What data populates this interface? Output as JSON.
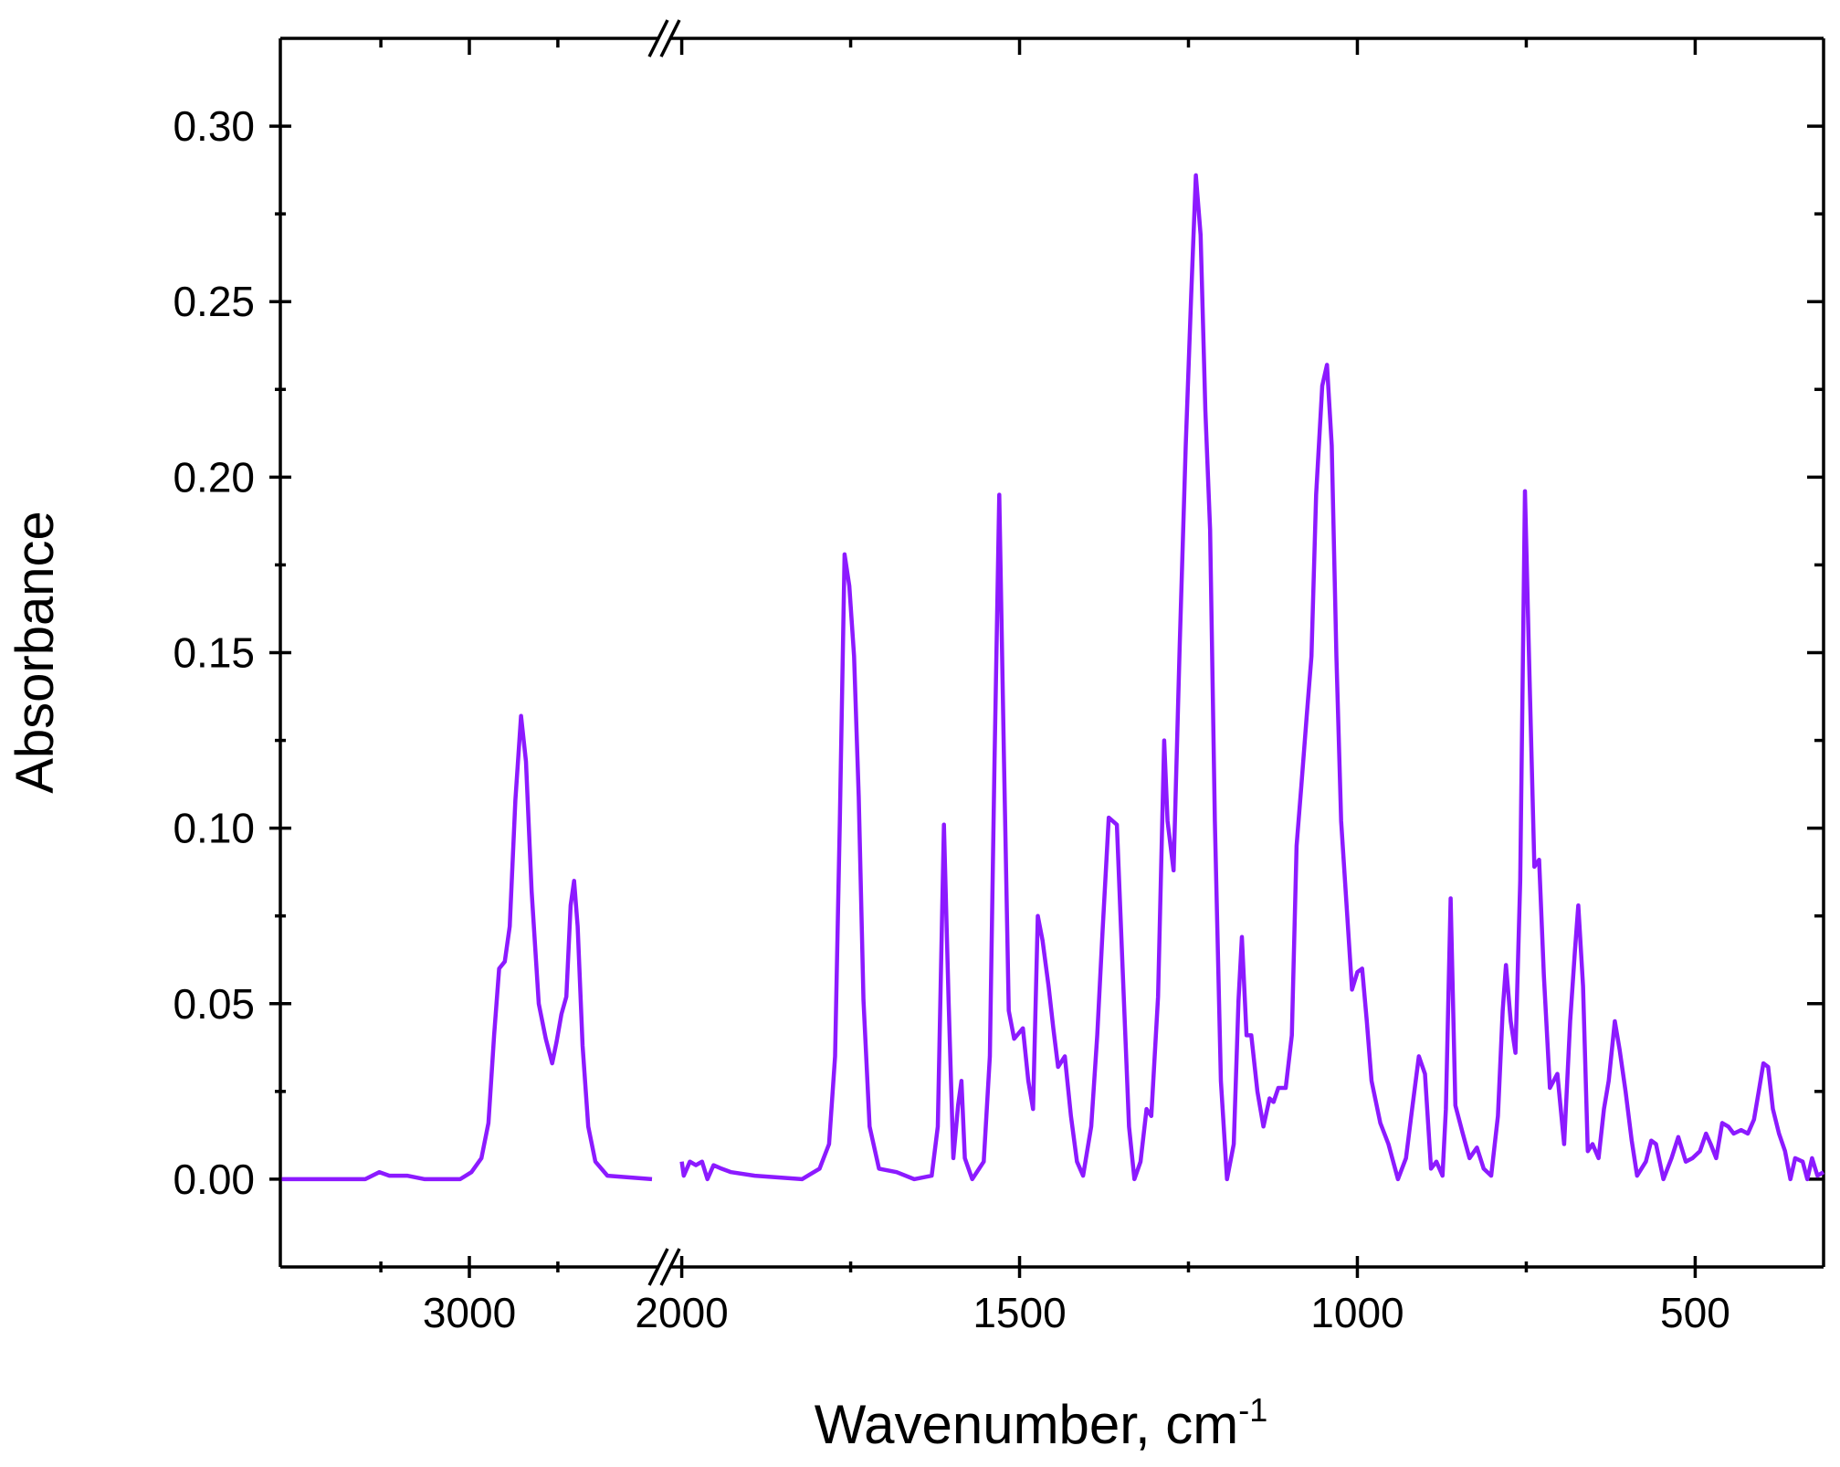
{
  "chart_data": {
    "type": "line",
    "color": "#8c1aff",
    "y_label": "Absorbance",
    "x_label": "Wavenumber, cm",
    "x_label_sup": "-1",
    "ylim": [
      -0.025,
      0.325
    ],
    "yticks": [
      {
        "value": 0,
        "label": "0.00"
      },
      {
        "value": 0.05,
        "label": "0.05"
      },
      {
        "value": 0.1,
        "label": "0.10"
      },
      {
        "value": 0.15,
        "label": "0.15"
      },
      {
        "value": 0.2,
        "label": "0.20"
      },
      {
        "value": 0.25,
        "label": "0.25"
      },
      {
        "value": 0.3,
        "label": "0.30"
      }
    ],
    "yminorticks": [
      0.025,
      0.075,
      0.125,
      0.175,
      0.225,
      0.275
    ],
    "panels": [
      {
        "xlim": [
          3267,
          2733
        ],
        "xticks": [
          3000
        ],
        "xminorticks": [
          3125,
          2875
        ],
        "x": [
          3265,
          3213,
          3147,
          3127,
          3113,
          3088,
          3063,
          3013,
          2997,
          2983,
          2973,
          2965,
          2958,
          2950,
          2943,
          2935,
          2927,
          2920,
          2912,
          2902,
          2892,
          2883,
          2877,
          2870,
          2863,
          2857,
          2852,
          2847,
          2840,
          2832,
          2822,
          2805,
          2742
        ],
        "values": [
          0,
          0,
          0,
          0.002,
          0.001,
          0.001,
          0,
          0,
          0.002,
          0.006,
          0.016,
          0.041,
          0.06,
          0.062,
          0.072,
          0.108,
          0.132,
          0.119,
          0.082,
          0.05,
          0.04,
          0.033,
          0.039,
          0.047,
          0.052,
          0.078,
          0.085,
          0.072,
          0.038,
          0.015,
          0.005,
          0.001,
          0
        ]
      },
      {
        "xlim": [
          2017,
          310
        ],
        "xticks": [
          2000,
          1500,
          1000,
          500
        ],
        "xminorticks": [
          1750,
          1250,
          750
        ],
        "x": [
          2000,
          1997,
          1988,
          1979,
          1970,
          1962,
          1953,
          1941,
          1927,
          1892,
          1822,
          1796,
          1782,
          1773,
          1766,
          1759,
          1752,
          1745,
          1738,
          1731,
          1722,
          1708,
          1682,
          1656,
          1630,
          1621,
          1612,
          1605,
          1598,
          1591,
          1586,
          1581,
          1570,
          1553,
          1544,
          1537,
          1530,
          1523,
          1516,
          1508,
          1495,
          1487,
          1480,
          1473,
          1466,
          1457,
          1450,
          1443,
          1433,
          1424,
          1415,
          1406,
          1394,
          1385,
          1377,
          1368,
          1356,
          1347,
          1338,
          1330,
          1321,
          1312,
          1305,
          1295,
          1286,
          1281,
          1272,
          1263,
          1254,
          1246,
          1239,
          1232,
          1225,
          1218,
          1211,
          1202,
          1193,
          1183,
          1176,
          1171,
          1164,
          1157,
          1148,
          1139,
          1130,
          1124,
          1117,
          1106,
          1097,
          1090,
          1083,
          1075,
          1068,
          1061,
          1052,
          1045,
          1038,
          1031,
          1024,
          1015,
          1008,
          1000,
          993,
          986,
          979,
          966,
          954,
          940,
          928,
          919,
          909,
          900,
          891,
          883,
          874,
          869,
          862,
          855,
          844,
          834,
          823,
          813,
          802,
          792,
          785,
          780,
          773,
          766,
          759,
          752,
          745,
          738,
          731,
          724,
          715,
          704,
          694,
          685,
          678,
          673,
          666,
          659,
          652,
          643,
          635,
          628,
          619,
          612,
          603,
          594,
          586,
          573,
          565,
          558,
          547,
          535,
          525,
          514,
          504,
          493,
          484,
          477,
          469,
          460,
          451,
          443,
          432,
          422,
          413,
          406,
          399,
          392,
          385,
          376,
          367,
          359,
          352,
          341,
          334,
          327,
          319,
          310
        ],
        "values": [
          0.005,
          0.001,
          0.005,
          0.004,
          0.005,
          0,
          0.004,
          0.003,
          0.002,
          0.001,
          0,
          0.003,
          0.01,
          0.035,
          0.102,
          0.178,
          0.169,
          0.149,
          0.109,
          0.051,
          0.015,
          0.003,
          0.002,
          0,
          0.001,
          0.015,
          0.101,
          0.051,
          0.006,
          0.021,
          0.028,
          0.006,
          0,
          0.005,
          0.035,
          0.119,
          0.195,
          0.119,
          0.048,
          0.04,
          0.043,
          0.028,
          0.02,
          0.075,
          0.068,
          0.055,
          0.043,
          0.032,
          0.035,
          0.018,
          0.005,
          0.001,
          0.015,
          0.041,
          0.071,
          0.103,
          0.101,
          0.058,
          0.015,
          0,
          0.005,
          0.02,
          0.018,
          0.052,
          0.125,
          0.102,
          0.088,
          0.152,
          0.209,
          0.252,
          0.286,
          0.269,
          0.219,
          0.185,
          0.102,
          0.028,
          0,
          0.01,
          0.051,
          0.069,
          0.041,
          0.041,
          0.025,
          0.015,
          0.023,
          0.022,
          0.026,
          0.026,
          0.041,
          0.095,
          0.112,
          0.132,
          0.149,
          0.195,
          0.226,
          0.232,
          0.209,
          0.149,
          0.102,
          0.075,
          0.054,
          0.059,
          0.06,
          0.045,
          0.028,
          0.016,
          0.01,
          0,
          0.006,
          0.02,
          0.035,
          0.03,
          0.003,
          0.005,
          0.001,
          0.02,
          0.08,
          0.021,
          0.013,
          0.006,
          0.009,
          0.003,
          0.001,
          0.018,
          0.048,
          0.061,
          0.045,
          0.036,
          0.085,
          0.196,
          0.142,
          0.089,
          0.091,
          0.058,
          0.026,
          0.03,
          0.01,
          0.045,
          0.065,
          0.078,
          0.055,
          0.008,
          0.01,
          0.006,
          0.02,
          0.028,
          0.045,
          0.037,
          0.025,
          0.011,
          0.001,
          0.005,
          0.011,
          0.01,
          0,
          0.006,
          0.012,
          0.005,
          0.006,
          0.008,
          0.013,
          0.01,
          0.006,
          0.016,
          0.015,
          0.013,
          0.014,
          0.013,
          0.017,
          0.025,
          0.033,
          0.032,
          0.02,
          0.013,
          0.008,
          0,
          0.006,
          0.005,
          0,
          0.006,
          0.001,
          0.002
        ]
      }
    ]
  }
}
